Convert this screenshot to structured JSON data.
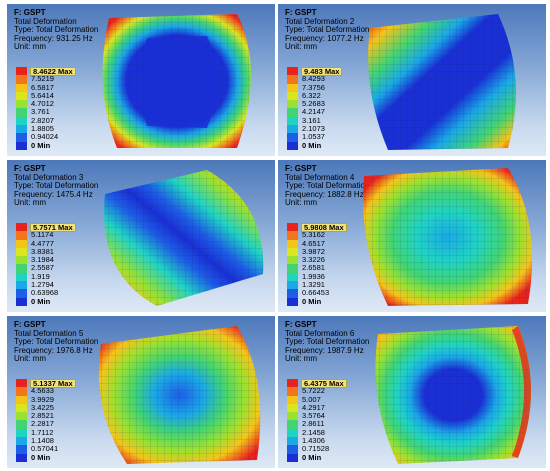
{
  "panels": [
    {
      "name": "F: GSPT",
      "result": "Total Deformation",
      "type": "Type: Total Deformation",
      "frequency": "Frequency: 931.25 Hz",
      "unit": "Unit: mm",
      "legend": [
        "8.4622 Max",
        "7.5219",
        "6.5817",
        "5.6414",
        "4.7012",
        "3.761",
        "2.8207",
        "1.8805",
        "0.94024",
        "0 Min"
      ]
    },
    {
      "name": "F: GSPT",
      "result": "Total Deformation 2",
      "type": "Type: Total Deformation",
      "frequency": "Frequency: 1077.2 Hz",
      "unit": "Unit: mm",
      "legend": [
        "9.483 Max",
        "8.4293",
        "7.3756",
        "6.322",
        "5.2683",
        "4.2147",
        "3.161",
        "2.1073",
        "1.0537",
        "0 Min"
      ]
    },
    {
      "name": "F: GSPT",
      "result": "Total Deformation 3",
      "type": "Type: Total Deformation",
      "frequency": "Frequency: 1475.4 Hz",
      "unit": "Unit: mm",
      "legend": [
        "5.7571 Max",
        "5.1174",
        "4.4777",
        "3.8381",
        "3.1984",
        "2.5587",
        "1.919",
        "1.2794",
        "0.63968",
        "0 Min"
      ]
    },
    {
      "name": "F: GSPT",
      "result": "Total Deformation 4",
      "type": "Type: Total Deformation",
      "frequency": "Frequency: 1882.8 Hz",
      "unit": "Unit: mm",
      "legend": [
        "5.9808 Max",
        "5.3162",
        "4.6517",
        "3.9872",
        "3.3226",
        "2.6581",
        "1.9936",
        "1.3291",
        "0.66453",
        "0 Min"
      ]
    },
    {
      "name": "F: GSPT",
      "result": "Total Deformation 5",
      "type": "Type: Total Deformation",
      "frequency": "Frequency: 1976.8 Hz",
      "unit": "Unit: mm",
      "legend": [
        "5.1337 Max",
        "4.5633",
        "3.9929",
        "3.4225",
        "2.8521",
        "2.2817",
        "1.7112",
        "1.1408",
        "0.57041",
        "0 Min"
      ]
    },
    {
      "name": "F: GSPT",
      "result": "Total Deformation 6",
      "type": "Type: Total Deformation",
      "frequency": "Frequency: 1987.9 Hz",
      "unit": "Unit: mm",
      "legend": [
        "6.4375 Max",
        "5.7222",
        "5.007",
        "4.2917",
        "3.5764",
        "2.8611",
        "2.1458",
        "1.4306",
        "0.71528",
        "0 Min"
      ]
    }
  ],
  "legend_colors": [
    "#e8231c",
    "#f2751c",
    "#f5c419",
    "#d9e51f",
    "#9be12f",
    "#42d472",
    "#1fd3c3",
    "#1aa8e6",
    "#1d5ee6",
    "#1a2fd4"
  ],
  "mesh_color": "#0a1a66"
}
